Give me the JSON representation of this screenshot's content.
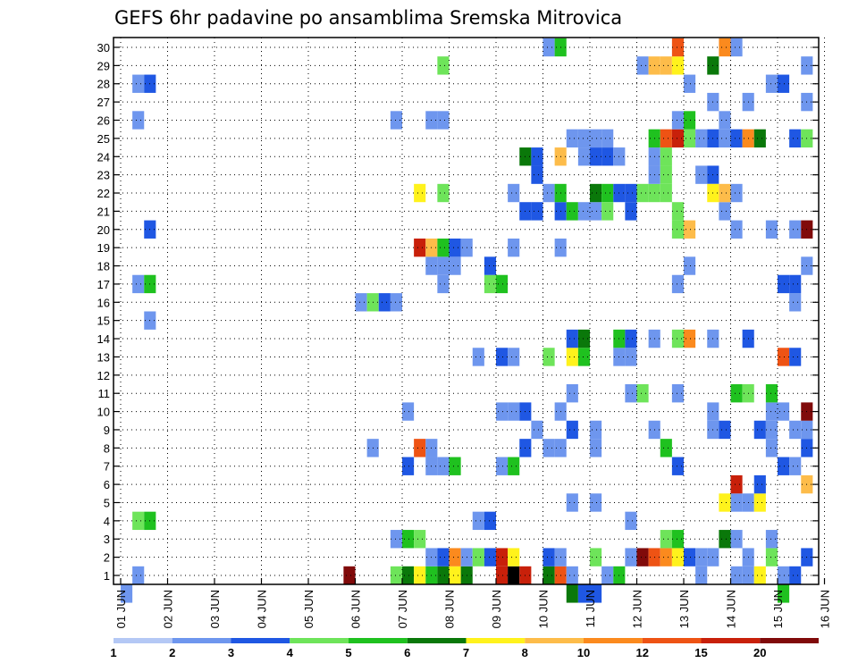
{
  "chart_data": {
    "type": "heatmap",
    "title": "GEFS 6hr padavine po ansamblima Sremska Mitrovica",
    "y_members": [
      1,
      2,
      3,
      4,
      5,
      6,
      7,
      8,
      9,
      10,
      11,
      12,
      13,
      14,
      15,
      16,
      17,
      18,
      19,
      20,
      21,
      22,
      23,
      24,
      25,
      26,
      27,
      28,
      29,
      30
    ],
    "x_dates": [
      "01 JUN",
      "02 JUN",
      "03 JUN",
      "04 JUN",
      "05 JUN",
      "06 JUN",
      "07 JUN",
      "08 JUN",
      "09 JUN",
      "10 JUN",
      "11 JUN",
      "12 JUN",
      "13 JUN",
      "14 JUN",
      "15 JUN",
      "16 JUN"
    ],
    "x_range_days": [
      1,
      16
    ],
    "step_hours": 6,
    "grid": "dotted",
    "colorbar": {
      "labels": [
        "1",
        "2",
        "3",
        "4",
        "5",
        "6",
        "7",
        "8",
        "10",
        "12",
        "15",
        "20"
      ],
      "colors": [
        "#b4c8f5",
        "#6e96ee",
        "#1f57e3",
        "#6ee45a",
        "#1fc11f",
        "#0a780a",
        "#fff21c",
        "#fdbc4a",
        "#fb8a1e",
        "#ee5314",
        "#c8200a",
        "#800a0a"
      ]
    },
    "cells": [
      [
        0.0,
        0,
        1
      ],
      [
        0.25,
        1,
        1
      ],
      [
        0.25,
        4,
        3
      ],
      [
        0.5,
        4,
        4
      ],
      [
        0.25,
        17,
        1
      ],
      [
        0.5,
        17,
        4
      ],
      [
        0.5,
        15,
        1
      ],
      [
        0.25,
        26,
        1
      ],
      [
        0.25,
        28,
        1
      ],
      [
        0.5,
        28,
        2
      ],
      [
        0.5,
        20,
        2
      ],
      [
        4.75,
        1,
        11
      ],
      [
        5.0,
        16,
        1
      ],
      [
        5.25,
        16,
        3
      ],
      [
        5.5,
        16,
        2
      ],
      [
        5.75,
        16,
        1
      ],
      [
        5.25,
        8,
        1
      ],
      [
        5.75,
        1,
        3
      ],
      [
        5.75,
        3,
        1
      ],
      [
        5.75,
        26,
        1
      ],
      [
        6.0,
        1,
        5
      ],
      [
        6.0,
        3,
        4
      ],
      [
        6.0,
        7,
        2
      ],
      [
        6.0,
        10,
        1
      ],
      [
        6.25,
        1,
        6
      ],
      [
        6.25,
        3,
        3
      ],
      [
        6.25,
        8,
        9
      ],
      [
        6.25,
        19,
        10
      ],
      [
        6.25,
        22,
        6
      ],
      [
        6.5,
        1,
        4
      ],
      [
        6.5,
        2,
        1
      ],
      [
        6.5,
        7,
        1
      ],
      [
        6.5,
        8,
        1
      ],
      [
        6.5,
        18,
        1
      ],
      [
        6.5,
        19,
        7
      ],
      [
        6.5,
        26,
        1
      ],
      [
        6.75,
        1,
        5
      ],
      [
        6.75,
        2,
        2
      ],
      [
        6.75,
        7,
        1
      ],
      [
        6.75,
        17,
        1
      ],
      [
        6.75,
        18,
        1
      ],
      [
        6.75,
        19,
        4
      ],
      [
        6.75,
        22,
        3
      ],
      [
        6.75,
        26,
        1
      ],
      [
        6.75,
        29,
        3
      ],
      [
        7.0,
        1,
        6
      ],
      [
        7.0,
        2,
        8
      ],
      [
        7.0,
        7,
        4
      ],
      [
        7.0,
        18,
        1
      ],
      [
        7.0,
        19,
        2
      ],
      [
        7.25,
        1,
        5
      ],
      [
        7.25,
        2,
        1
      ],
      [
        7.25,
        19,
        1
      ],
      [
        7.5,
        2,
        3
      ],
      [
        7.5,
        4,
        1
      ],
      [
        7.5,
        13,
        1
      ],
      [
        7.75,
        2,
        2
      ],
      [
        7.75,
        4,
        2
      ],
      [
        7.75,
        17,
        3
      ],
      [
        7.75,
        18,
        2
      ],
      [
        8.0,
        1,
        10
      ],
      [
        8.0,
        2,
        10
      ],
      [
        8.0,
        7,
        1
      ],
      [
        8.0,
        10,
        1
      ],
      [
        8.0,
        13,
        2
      ],
      [
        8.0,
        17,
        4
      ],
      [
        8.25,
        1,
        12
      ],
      [
        8.25,
        2,
        6
      ],
      [
        8.25,
        7,
        4
      ],
      [
        8.25,
        10,
        1
      ],
      [
        8.25,
        13,
        1
      ],
      [
        8.25,
        19,
        1
      ],
      [
        8.25,
        22,
        1
      ],
      [
        8.5,
        1,
        10
      ],
      [
        8.5,
        8,
        2
      ],
      [
        8.5,
        10,
        2
      ],
      [
        8.5,
        21,
        2
      ],
      [
        8.5,
        24,
        5
      ],
      [
        8.75,
        9,
        1
      ],
      [
        8.75,
        21,
        2
      ],
      [
        8.75,
        23,
        2
      ],
      [
        8.75,
        24,
        2
      ],
      [
        9.0,
        1,
        5
      ],
      [
        9.0,
        2,
        2
      ],
      [
        9.0,
        8,
        1
      ],
      [
        9.0,
        13,
        3
      ],
      [
        9.0,
        22,
        1
      ],
      [
        9.0,
        30,
        1
      ],
      [
        9.25,
        1,
        9
      ],
      [
        9.25,
        2,
        1
      ],
      [
        9.25,
        8,
        1
      ],
      [
        9.25,
        10,
        1
      ],
      [
        9.25,
        19,
        1
      ],
      [
        9.25,
        21,
        2
      ],
      [
        9.25,
        22,
        4
      ],
      [
        9.25,
        24,
        7
      ],
      [
        9.25,
        30,
        4
      ],
      [
        9.5,
        0,
        5
      ],
      [
        9.5,
        1,
        1
      ],
      [
        9.5,
        5,
        1
      ],
      [
        9.5,
        9,
        2
      ],
      [
        9.5,
        11,
        1
      ],
      [
        9.5,
        13,
        6
      ],
      [
        9.5,
        14,
        2
      ],
      [
        9.5,
        21,
        4
      ],
      [
        9.5,
        25,
        1
      ],
      [
        9.75,
        0,
        2
      ],
      [
        9.75,
        13,
        4
      ],
      [
        9.75,
        14,
        5
      ],
      [
        9.75,
        21,
        1
      ],
      [
        9.75,
        24,
        1
      ],
      [
        9.75,
        25,
        1
      ],
      [
        10.0,
        0,
        2
      ],
      [
        10.0,
        2,
        3
      ],
      [
        10.0,
        5,
        1
      ],
      [
        10.0,
        8,
        1
      ],
      [
        10.0,
        9,
        1
      ],
      [
        10.0,
        21,
        1
      ],
      [
        10.0,
        22,
        5
      ],
      [
        10.0,
        24,
        2
      ],
      [
        10.0,
        25,
        1
      ],
      [
        10.25,
        1,
        1
      ],
      [
        10.25,
        22,
        4
      ],
      [
        10.25,
        24,
        2
      ],
      [
        10.25,
        25,
        1
      ],
      [
        10.25,
        21,
        3
      ],
      [
        10.5,
        1,
        4
      ],
      [
        10.5,
        13,
        1
      ],
      [
        10.5,
        14,
        4
      ],
      [
        10.5,
        22,
        2
      ],
      [
        10.5,
        24,
        1
      ],
      [
        10.75,
        2,
        1
      ],
      [
        10.75,
        4,
        1
      ],
      [
        10.75,
        11,
        1
      ],
      [
        10.75,
        13,
        1
      ],
      [
        10.75,
        14,
        2
      ],
      [
        10.75,
        22,
        2
      ],
      [
        10.75,
        21,
        2
      ],
      [
        11.0,
        2,
        11
      ],
      [
        11.0,
        11,
        3
      ],
      [
        11.0,
        22,
        3
      ],
      [
        11.0,
        29,
        1
      ],
      [
        11.25,
        2,
        9
      ],
      [
        11.25,
        9,
        1
      ],
      [
        11.25,
        14,
        1
      ],
      [
        11.25,
        22,
        3
      ],
      [
        11.25,
        23,
        1
      ],
      [
        11.25,
        24,
        1
      ],
      [
        11.25,
        25,
        4
      ],
      [
        11.25,
        29,
        7
      ],
      [
        11.5,
        2,
        8
      ],
      [
        11.5,
        3,
        3
      ],
      [
        11.5,
        8,
        4
      ],
      [
        11.5,
        22,
        3
      ],
      [
        11.5,
        23,
        3
      ],
      [
        11.5,
        24,
        3
      ],
      [
        11.5,
        25,
        9
      ],
      [
        11.5,
        29,
        7
      ],
      [
        11.75,
        2,
        6
      ],
      [
        11.75,
        3,
        4
      ],
      [
        11.75,
        7,
        2
      ],
      [
        11.75,
        11,
        1
      ],
      [
        11.75,
        14,
        3
      ],
      [
        11.75,
        17,
        1
      ],
      [
        11.75,
        20,
        3
      ],
      [
        11.75,
        21,
        3
      ],
      [
        11.75,
        25,
        10
      ],
      [
        11.75,
        26,
        1
      ],
      [
        11.75,
        29,
        6
      ],
      [
        11.75,
        30,
        9
      ],
      [
        12.0,
        2,
        2
      ],
      [
        12.0,
        14,
        8
      ],
      [
        12.0,
        18,
        1
      ],
      [
        12.0,
        20,
        7
      ],
      [
        12.0,
        25,
        3
      ],
      [
        12.0,
        26,
        4
      ],
      [
        12.0,
        28,
        1
      ],
      [
        12.25,
        1,
        1
      ],
      [
        12.25,
        2,
        1
      ],
      [
        12.25,
        23,
        1
      ],
      [
        12.25,
        25,
        1
      ],
      [
        12.5,
        2,
        1
      ],
      [
        12.5,
        9,
        1
      ],
      [
        12.5,
        10,
        1
      ],
      [
        12.5,
        14,
        1
      ],
      [
        12.5,
        23,
        2
      ],
      [
        12.5,
        25,
        2
      ],
      [
        12.5,
        27,
        1
      ],
      [
        12.5,
        29,
        5
      ],
      [
        12.5,
        22,
        6
      ],
      [
        12.75,
        3,
        5
      ],
      [
        12.75,
        5,
        6
      ],
      [
        12.75,
        9,
        2
      ],
      [
        12.75,
        21,
        1
      ],
      [
        12.75,
        22,
        7
      ],
      [
        12.75,
        25,
        1
      ],
      [
        12.75,
        26,
        1
      ],
      [
        12.75,
        30,
        8
      ],
      [
        13.0,
        1,
        1
      ],
      [
        13.0,
        3,
        1
      ],
      [
        13.0,
        5,
        1
      ],
      [
        13.0,
        6,
        10
      ],
      [
        13.0,
        11,
        4
      ],
      [
        13.0,
        20,
        1
      ],
      [
        13.0,
        22,
        1
      ],
      [
        13.0,
        25,
        2
      ],
      [
        13.0,
        30,
        1
      ],
      [
        13.25,
        1,
        1
      ],
      [
        13.25,
        2,
        1
      ],
      [
        13.25,
        5,
        1
      ],
      [
        13.25,
        11,
        3
      ],
      [
        13.25,
        14,
        2
      ],
      [
        13.25,
        27,
        1
      ],
      [
        13.25,
        25,
        8
      ],
      [
        13.5,
        1,
        6
      ],
      [
        13.5,
        5,
        6
      ],
      [
        13.5,
        6,
        2
      ],
      [
        13.5,
        9,
        2
      ],
      [
        13.5,
        25,
        5
      ],
      [
        13.75,
        2,
        3
      ],
      [
        13.75,
        3,
        1
      ],
      [
        13.75,
        8,
        1
      ],
      [
        13.75,
        9,
        1
      ],
      [
        13.75,
        10,
        1
      ],
      [
        13.75,
        11,
        4
      ],
      [
        13.75,
        20,
        1
      ],
      [
        13.75,
        28,
        1
      ],
      [
        14.0,
        0,
        4
      ],
      [
        14.0,
        1,
        1
      ],
      [
        14.0,
        7,
        2
      ],
      [
        14.0,
        10,
        1
      ],
      [
        14.0,
        13,
        9
      ],
      [
        14.0,
        17,
        2
      ],
      [
        14.0,
        28,
        2
      ],
      [
        14.25,
        1,
        2
      ],
      [
        14.25,
        7,
        1
      ],
      [
        14.25,
        9,
        1
      ],
      [
        14.25,
        13,
        2
      ],
      [
        14.25,
        16,
        1
      ],
      [
        14.25,
        17,
        2
      ],
      [
        14.25,
        20,
        1
      ],
      [
        14.25,
        25,
        2
      ],
      [
        14.5,
        2,
        2
      ],
      [
        14.5,
        6,
        7
      ],
      [
        14.5,
        8,
        2
      ],
      [
        14.5,
        9,
        1
      ],
      [
        14.5,
        10,
        11
      ],
      [
        14.5,
        18,
        1
      ],
      [
        14.5,
        20,
        11
      ],
      [
        14.5,
        25,
        3
      ],
      [
        14.5,
        27,
        1
      ],
      [
        14.5,
        29,
        1
      ],
      [
        14.75,
        2,
        1
      ],
      [
        14.75,
        8,
        3
      ],
      [
        14.75,
        10,
        2
      ],
      [
        14.75,
        24,
        1
      ],
      [
        14.75,
        30,
        3
      ],
      [
        15.0,
        2,
        1
      ],
      [
        15.0,
        10,
        1
      ],
      [
        15.0,
        23,
        3
      ],
      [
        15.0,
        25,
        1
      ],
      [
        15.0,
        28,
        2
      ],
      [
        15.0,
        30,
        3
      ],
      [
        15.25,
        1,
        3
      ],
      [
        15.25,
        2,
        1
      ],
      [
        15.25,
        10,
        1
      ],
      [
        15.25,
        17,
        2
      ],
      [
        15.25,
        22,
        3
      ],
      [
        15.25,
        28,
        8
      ],
      [
        15.5,
        1,
        12
      ],
      [
        15.5,
        2,
        8
      ],
      [
        15.5,
        6,
        1
      ],
      [
        15.5,
        10,
        4
      ],
      [
        15.5,
        17,
        1
      ],
      [
        15.5,
        18,
        9
      ],
      [
        15.5,
        20,
        1
      ],
      [
        15.5,
        22,
        1
      ],
      [
        15.5,
        28,
        1
      ],
      [
        15.75,
        1,
        5
      ],
      [
        15.75,
        2,
        2
      ],
      [
        15.75,
        8,
        3
      ],
      [
        15.75,
        12,
        2
      ],
      [
        15.75,
        21,
        5
      ],
      [
        15.75,
        23,
        3
      ],
      [
        15.75,
        25,
        1
      ],
      [
        15.75,
        30,
        2
      ]
    ]
  }
}
